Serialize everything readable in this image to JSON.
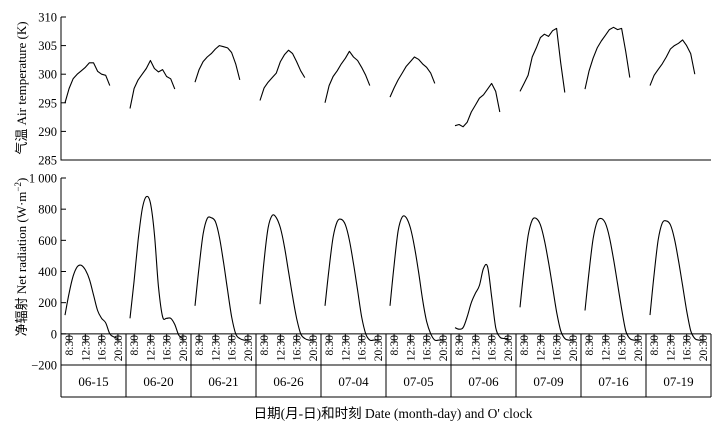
{
  "chart_data": [
    {
      "type": "line",
      "ylabel": "气温 Air temperature (K)",
      "ylim": [
        285,
        310
      ],
      "yticks": [
        "285",
        "290",
        "295",
        "300",
        "305",
        "310"
      ],
      "grid": false,
      "days": [
        {
          "date": "06-15",
          "hours": [
            7.5,
            8.5,
            9.5,
            10.5,
            11.5,
            12.5,
            13.5,
            14.5,
            15.5,
            16.5,
            17.5,
            18.5
          ],
          "values": [
            295.0,
            297.5,
            299.2,
            300.0,
            300.6,
            301.2,
            302.0,
            302.0,
            300.5,
            300.0,
            299.8,
            298.0
          ]
        },
        {
          "date": "06-20",
          "hours": [
            7.5,
            8.5,
            9.5,
            10.5,
            11.5,
            12.5,
            13.5,
            14.5,
            15.5,
            16.5,
            17.5,
            18.5
          ],
          "values": [
            294.0,
            297.5,
            299.0,
            300.0,
            301.0,
            302.4,
            301.0,
            300.4,
            300.8,
            299.6,
            299.2,
            297.4
          ]
        },
        {
          "date": "06-21",
          "hours": [
            7.5,
            8.5,
            9.5,
            10.5,
            11.5,
            12.5,
            13.5,
            14.5,
            15.5,
            16.5,
            17.5,
            18.5
          ],
          "values": [
            298.6,
            300.8,
            302.2,
            303.0,
            303.6,
            304.4,
            305.0,
            304.8,
            304.6,
            303.8,
            301.8,
            299.0
          ]
        },
        {
          "date": "06-26",
          "hours": [
            7.5,
            8.5,
            9.5,
            10.5,
            11.5,
            12.5,
            13.5,
            14.5,
            15.5,
            16.5,
            17.5,
            18.5
          ],
          "values": [
            295.4,
            297.6,
            298.6,
            299.4,
            300.2,
            302.2,
            303.4,
            304.2,
            303.6,
            302.2,
            300.6,
            299.4
          ]
        },
        {
          "date": "07-04",
          "hours": [
            7.5,
            8.5,
            9.5,
            10.5,
            11.5,
            12.5,
            13.5,
            14.5,
            15.5,
            16.5,
            17.5,
            18.5
          ],
          "values": [
            295.0,
            298.0,
            299.6,
            300.6,
            301.8,
            302.8,
            304.0,
            303.0,
            302.4,
            301.2,
            299.8,
            298.0
          ]
        },
        {
          "date": "07-05",
          "hours": [
            7.5,
            8.5,
            9.5,
            10.5,
            11.5,
            12.5,
            13.5,
            14.5,
            15.5,
            16.5,
            17.5,
            18.5
          ],
          "values": [
            296.0,
            297.6,
            299.0,
            300.2,
            301.4,
            302.2,
            303.0,
            302.6,
            301.8,
            301.2,
            300.2,
            298.4
          ]
        },
        {
          "date": "07-06",
          "hours": [
            7.5,
            8.5,
            9.5,
            10.5,
            11.5,
            12.5,
            13.5,
            14.5,
            15.5,
            16.5,
            17.5,
            18.5
          ],
          "values": [
            291.0,
            291.2,
            290.8,
            291.6,
            293.4,
            294.6,
            295.8,
            296.4,
            297.4,
            298.4,
            297.0,
            293.4
          ]
        },
        {
          "date": "07-09",
          "hours": [
            7.5,
            8.5,
            9.5,
            10.5,
            11.5,
            12.5,
            13.5,
            14.5,
            15.5,
            16.5,
            17.5,
            18.5
          ],
          "values": [
            297.0,
            298.4,
            299.8,
            303.0,
            304.6,
            306.4,
            307.0,
            306.6,
            307.6,
            308.0,
            302.0,
            296.8
          ]
        },
        {
          "date": "07-16",
          "hours": [
            7.5,
            8.5,
            9.5,
            10.5,
            11.5,
            12.5,
            13.5,
            14.5,
            15.5,
            16.5,
            17.5,
            18.5
          ],
          "values": [
            297.4,
            300.6,
            302.8,
            304.6,
            305.8,
            306.8,
            307.8,
            308.2,
            307.8,
            308.0,
            304.0,
            299.4
          ]
        },
        {
          "date": "07-19",
          "hours": [
            7.5,
            8.5,
            9.5,
            10.5,
            11.5,
            12.5,
            13.5,
            14.5,
            15.5,
            16.5,
            17.5,
            18.5
          ],
          "values": [
            298.0,
            299.8,
            300.8,
            301.8,
            303.0,
            304.4,
            305.0,
            305.4,
            306.0,
            305.0,
            303.6,
            300.0
          ]
        }
      ]
    },
    {
      "type": "line",
      "ylabel": "净辐射 Net radiation (W·m",
      "ylabel_exp": "−2",
      "ylabel_tail": ")",
      "xlabel": "日期(月-日)和时刻 Date (month-day) and O' clock",
      "ylim": [
        -200,
        1000
      ],
      "yticks": [
        "−200",
        "0",
        "200",
        "400",
        "600",
        "800",
        "1 000"
      ],
      "xticks": [
        "8:30",
        "12:30",
        "16:30",
        "20:30"
      ],
      "grid": false,
      "days": [
        {
          "date": "06-15",
          "hours": [
            7.5,
            8.5,
            9.5,
            10.5,
            11.5,
            12.5,
            13.5,
            14.5,
            15.5,
            16.5,
            17.5,
            18.5,
            19.5,
            20.5
          ],
          "values": [
            120,
            260,
            370,
            430,
            440,
            410,
            350,
            250,
            150,
            100,
            70,
            0,
            -20,
            -30
          ]
        },
        {
          "date": "06-20",
          "hours": [
            7.5,
            8.5,
            9.5,
            10.5,
            11.5,
            12.5,
            13.5,
            14.5,
            15.5,
            16.5,
            17.5,
            18.5,
            19.5,
            20.5
          ],
          "values": [
            100,
            340,
            600,
            800,
            880,
            840,
            640,
            300,
            110,
            100,
            100,
            60,
            -10,
            -30
          ]
        },
        {
          "date": "06-21",
          "hours": [
            7.5,
            8.5,
            9.5,
            10.5,
            11.5,
            12.5,
            13.5,
            14.5,
            15.5,
            16.5,
            17.5,
            18.5,
            19.5,
            20.5
          ],
          "values": [
            180,
            430,
            640,
            740,
            745,
            720,
            620,
            460,
            280,
            110,
            0,
            -30,
            -40,
            -40
          ]
        },
        {
          "date": "06-26",
          "hours": [
            7.5,
            8.5,
            9.5,
            10.5,
            11.5,
            12.5,
            13.5,
            14.5,
            15.5,
            16.5,
            17.5,
            18.5,
            19.5,
            20.5
          ],
          "values": [
            190,
            470,
            680,
            760,
            745,
            680,
            560,
            400,
            240,
            100,
            0,
            -30,
            -40,
            -40
          ]
        },
        {
          "date": "07-04",
          "hours": [
            7.5,
            8.5,
            9.5,
            10.5,
            11.5,
            12.5,
            13.5,
            14.5,
            15.5,
            16.5,
            17.5,
            18.5,
            19.5,
            20.5
          ],
          "values": [
            180,
            420,
            620,
            720,
            735,
            700,
            600,
            450,
            280,
            110,
            0,
            -40,
            -40,
            -40
          ]
        },
        {
          "date": "07-05",
          "hours": [
            7.5,
            8.5,
            9.5,
            10.5,
            11.5,
            12.5,
            13.5,
            14.5,
            15.5,
            16.5,
            17.5,
            18.5,
            19.5,
            20.5
          ],
          "values": [
            180,
            440,
            660,
            750,
            745,
            680,
            560,
            400,
            220,
            80,
            0,
            -40,
            -40,
            -40
          ]
        },
        {
          "date": "07-06",
          "hours": [
            7.5,
            8.5,
            9.5,
            10.5,
            11.5,
            12.5,
            13.5,
            14.5,
            15.5,
            16.5,
            17.5,
            18.5,
            19.5,
            20.5
          ],
          "values": [
            40,
            30,
            40,
            110,
            200,
            260,
            310,
            420,
            430,
            240,
            40,
            -20,
            -30,
            -30
          ]
        },
        {
          "date": "07-09",
          "hours": [
            7.5,
            8.5,
            9.5,
            10.5,
            11.5,
            12.5,
            13.5,
            14.5,
            15.5,
            16.5,
            17.5,
            18.5,
            19.5,
            20.5
          ],
          "values": [
            170,
            420,
            630,
            730,
            740,
            700,
            600,
            460,
            300,
            140,
            20,
            -30,
            -40,
            -40
          ]
        },
        {
          "date": "07-16",
          "hours": [
            7.5,
            8.5,
            9.5,
            10.5,
            11.5,
            12.5,
            13.5,
            14.5,
            15.5,
            16.5,
            17.5,
            18.5,
            19.5,
            20.5
          ],
          "values": [
            150,
            400,
            610,
            720,
            740,
            710,
            620,
            480,
            320,
            160,
            20,
            -30,
            -40,
            -40
          ]
        },
        {
          "date": "07-19",
          "hours": [
            7.5,
            8.5,
            9.5,
            10.5,
            11.5,
            12.5,
            13.5,
            14.5,
            15.5,
            16.5,
            17.5,
            18.5,
            19.5,
            20.5
          ],
          "values": [
            120,
            380,
            600,
            710,
            725,
            700,
            610,
            470,
            310,
            150,
            20,
            -30,
            -40,
            -40
          ]
        }
      ]
    }
  ]
}
